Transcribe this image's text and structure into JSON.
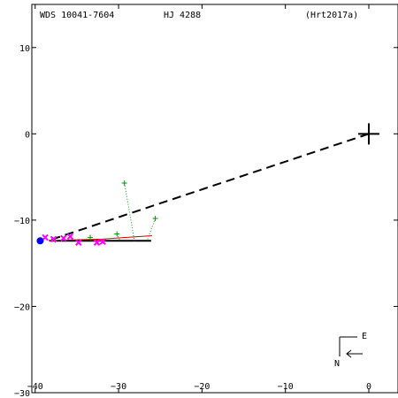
{
  "header": {
    "wds_id": "WDS 10041-7604",
    "discoverer": "HJ 4288",
    "reference": "(Hrt2017a)"
  },
  "compass": {
    "east_label": "E",
    "north_label": "N"
  },
  "chart_data": {
    "type": "scatter",
    "title": "",
    "xlabel": "",
    "ylabel": "",
    "xlim": [
      -40.4,
      3.5
    ],
    "ylim": [
      -30,
      15
    ],
    "x_ticks": [
      {
        "value": -40,
        "label": "−40"
      },
      {
        "value": -30,
        "label": "−30"
      },
      {
        "value": -20,
        "label": "−20"
      },
      {
        "value": -10,
        "label": "−10"
      },
      {
        "value": 0,
        "label": "0"
      }
    ],
    "y_ticks": [
      {
        "value": 10,
        "label": "10"
      },
      {
        "value": 0,
        "label": "0"
      },
      {
        "value": -10,
        "label": "−10"
      },
      {
        "value": -20,
        "label": "−20"
      },
      {
        "value": -30,
        "label": "−30"
      }
    ],
    "primary": {
      "x": 0,
      "y": 0
    },
    "line_of_nodes": {
      "from": [
        0,
        0
      ],
      "to": [
        -38.2,
        -12.3
      ]
    },
    "orbit_fits": [
      {
        "color": "#000000",
        "points": [
          [
            -38.3,
            -12.4
          ],
          [
            -26.1,
            -12.4
          ]
        ]
      },
      {
        "color": "#cc0000",
        "points": [
          [
            -38.4,
            -12.35
          ],
          [
            -32,
            -12.2
          ],
          [
            -26,
            -11.8
          ]
        ]
      }
    ],
    "green_observations": {
      "color": "#009900",
      "points": [
        {
          "x": -29.3,
          "y": -5.7,
          "fit": [
            -28.1,
            -12.4
          ]
        },
        {
          "x": -25.6,
          "y": -9.8,
          "fit": [
            -26.6,
            -12.4
          ]
        },
        {
          "x": -30.2,
          "y": -11.6,
          "fit": [
            -29.8,
            -12.4
          ]
        },
        {
          "x": -33.4,
          "y": -12.0,
          "fit": [
            -33.3,
            -12.4
          ]
        },
        {
          "x": -37.6,
          "y": -12.3,
          "fit": [
            -37.6,
            -12.4
          ]
        }
      ]
    },
    "magenta_observations": {
      "color": "#ff00ff",
      "points": [
        {
          "x": -38.8,
          "y": -12.0
        },
        {
          "x": -37.8,
          "y": -12.2
        },
        {
          "x": -36.6,
          "y": -12.1
        },
        {
          "x": -35.8,
          "y": -11.9
        },
        {
          "x": -34.8,
          "y": -12.6
        },
        {
          "x": -32.6,
          "y": -12.6
        },
        {
          "x": -31.9,
          "y": -12.5
        }
      ]
    },
    "latest_position": {
      "x": -39.4,
      "y": -12.4,
      "color": "#0000ff"
    }
  }
}
